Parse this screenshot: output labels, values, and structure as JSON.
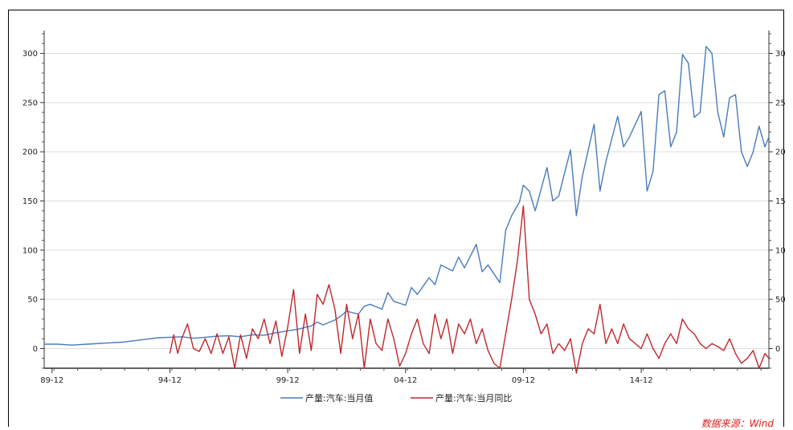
{
  "colors": {
    "series1": "#4a7bbd",
    "series2": "#c0272d",
    "grid": "#dddddd",
    "source": "#e02020"
  },
  "source_text": "数据来源：Wind",
  "chart_data": {
    "type": "line",
    "x_ticks": [
      "89-12",
      "94-12",
      "99-12",
      "04-12",
      "09-12",
      "14-12"
    ],
    "xlim": [
      "1989-08",
      "2020-05"
    ],
    "ylim": [
      -20,
      320
    ],
    "y_ticks": [
      0,
      50,
      100,
      150,
      200,
      250,
      300
    ],
    "grid": true,
    "legend": "bottom-center",
    "series": [
      {
        "name": "产量:汽车:当月值",
        "axis": "both",
        "points": [
          [
            "1989-08",
            4.5
          ],
          [
            "1990-03",
            4.5
          ],
          [
            "1990-10",
            3.5
          ],
          [
            "1991-06",
            4.5
          ],
          [
            "1992-03",
            5.5
          ],
          [
            "1992-12",
            6.5
          ],
          [
            "1993-06",
            8
          ],
          [
            "1993-12",
            9.5
          ],
          [
            "1994-06",
            11
          ],
          [
            "1994-12",
            11.5
          ],
          [
            "1995-06",
            12
          ],
          [
            "1995-12",
            10.5
          ],
          [
            "1996-06",
            11.5
          ],
          [
            "1996-12",
            12.5
          ],
          [
            "1997-06",
            13
          ],
          [
            "1997-12",
            12
          ],
          [
            "1998-06",
            14
          ],
          [
            "1998-12",
            13.5
          ],
          [
            "1999-06",
            16
          ],
          [
            "1999-12",
            18
          ],
          [
            "2000-06",
            20
          ],
          [
            "2000-12",
            23
          ],
          [
            "2001-03",
            27
          ],
          [
            "2001-06",
            24
          ],
          [
            "2001-12",
            29
          ],
          [
            "2002-03",
            33
          ],
          [
            "2002-06",
            38
          ],
          [
            "2002-12",
            35
          ],
          [
            "2003-03",
            43
          ],
          [
            "2003-06",
            45
          ],
          [
            "2003-12",
            40
          ],
          [
            "2004-03",
            57
          ],
          [
            "2004-06",
            48
          ],
          [
            "2004-12",
            44
          ],
          [
            "2005-03",
            62
          ],
          [
            "2005-06",
            55
          ],
          [
            "2005-12",
            72
          ],
          [
            "2006-03",
            65
          ],
          [
            "2006-06",
            85
          ],
          [
            "2006-12",
            79
          ],
          [
            "2007-03",
            93
          ],
          [
            "2007-06",
            82
          ],
          [
            "2007-12",
            106
          ],
          [
            "2008-03",
            78
          ],
          [
            "2008-06",
            85
          ],
          [
            "2008-12",
            67
          ],
          [
            "2009-03",
            120
          ],
          [
            "2009-06",
            135
          ],
          [
            "2009-10",
            149
          ],
          [
            "2009-12",
            166
          ],
          [
            "2010-03",
            160
          ],
          [
            "2010-06",
            140
          ],
          [
            "2010-12",
            184
          ],
          [
            "2011-03",
            150
          ],
          [
            "2011-06",
            155
          ],
          [
            "2011-12",
            202
          ],
          [
            "2012-03",
            135
          ],
          [
            "2012-06",
            175
          ],
          [
            "2012-12",
            228
          ],
          [
            "2013-03",
            160
          ],
          [
            "2013-06",
            190
          ],
          [
            "2013-12",
            236
          ],
          [
            "2014-03",
            205
          ],
          [
            "2014-06",
            215
          ],
          [
            "2014-12",
            241
          ],
          [
            "2015-03",
            160
          ],
          [
            "2015-06",
            180
          ],
          [
            "2015-09",
            258
          ],
          [
            "2015-12",
            262
          ],
          [
            "2016-03",
            205
          ],
          [
            "2016-06",
            220
          ],
          [
            "2016-09",
            299
          ],
          [
            "2016-12",
            290
          ],
          [
            "2017-03",
            235
          ],
          [
            "2017-06",
            240
          ],
          [
            "2017-09",
            307
          ],
          [
            "2017-12",
            300
          ],
          [
            "2018-03",
            240
          ],
          [
            "2018-06",
            215
          ],
          [
            "2018-09",
            255
          ],
          [
            "2018-12",
            258
          ],
          [
            "2019-03",
            200
          ],
          [
            "2019-06",
            185
          ],
          [
            "2019-09",
            200
          ],
          [
            "2019-12",
            226
          ],
          [
            "2020-03",
            205
          ],
          [
            "2020-05",
            215
          ]
        ]
      },
      {
        "name": "产量:汽车:当月同比",
        "axis": "both",
        "points": [
          [
            "1994-12",
            -5
          ],
          [
            "1995-02",
            14
          ],
          [
            "1995-04",
            -5
          ],
          [
            "1995-06",
            10
          ],
          [
            "1995-09",
            25
          ],
          [
            "1995-12",
            0
          ],
          [
            "1996-03",
            -3
          ],
          [
            "1996-06",
            10
          ],
          [
            "1996-09",
            -5
          ],
          [
            "1996-12",
            15
          ],
          [
            "1997-03",
            -5
          ],
          [
            "1997-06",
            12
          ],
          [
            "1997-09",
            -20
          ],
          [
            "1997-12",
            14
          ],
          [
            "1998-03",
            -10
          ],
          [
            "1998-06",
            20
          ],
          [
            "1998-09",
            10
          ],
          [
            "1998-12",
            30
          ],
          [
            "1999-03",
            5
          ],
          [
            "1999-06",
            28
          ],
          [
            "1999-09",
            -8
          ],
          [
            "1999-12",
            22
          ],
          [
            "2000-03",
            60
          ],
          [
            "2000-06",
            -5
          ],
          [
            "2000-09",
            35
          ],
          [
            "2000-12",
            -2
          ],
          [
            "2001-03",
            55
          ],
          [
            "2001-06",
            45
          ],
          [
            "2001-09",
            65
          ],
          [
            "2001-12",
            40
          ],
          [
            "2002-03",
            -5
          ],
          [
            "2002-06",
            45
          ],
          [
            "2002-09",
            10
          ],
          [
            "2002-12",
            35
          ],
          [
            "2003-03",
            -20
          ],
          [
            "2003-06",
            30
          ],
          [
            "2003-09",
            5
          ],
          [
            "2003-12",
            -2
          ],
          [
            "2004-03",
            30
          ],
          [
            "2004-06",
            10
          ],
          [
            "2004-09",
            -18
          ],
          [
            "2004-12",
            -5
          ],
          [
            "2005-03",
            15
          ],
          [
            "2005-06",
            30
          ],
          [
            "2005-09",
            5
          ],
          [
            "2005-12",
            -5
          ],
          [
            "2006-03",
            35
          ],
          [
            "2006-06",
            10
          ],
          [
            "2006-09",
            30
          ],
          [
            "2006-12",
            -5
          ],
          [
            "2007-03",
            25
          ],
          [
            "2007-06",
            15
          ],
          [
            "2007-09",
            30
          ],
          [
            "2007-12",
            5
          ],
          [
            "2008-03",
            20
          ],
          [
            "2008-06",
            -2
          ],
          [
            "2008-09",
            -15
          ],
          [
            "2008-12",
            -20
          ],
          [
            "2009-03",
            15
          ],
          [
            "2009-06",
            50
          ],
          [
            "2009-09",
            90
          ],
          [
            "2009-12",
            145
          ],
          [
            "2010-03",
            50
          ],
          [
            "2010-06",
            35
          ],
          [
            "2010-09",
            15
          ],
          [
            "2010-12",
            25
          ],
          [
            "2011-03",
            -5
          ],
          [
            "2011-06",
            5
          ],
          [
            "2011-09",
            -2
          ],
          [
            "2011-12",
            10
          ],
          [
            "2012-03",
            -25
          ],
          [
            "2012-06",
            5
          ],
          [
            "2012-09",
            20
          ],
          [
            "2012-12",
            15
          ],
          [
            "2013-03",
            45
          ],
          [
            "2013-06",
            5
          ],
          [
            "2013-09",
            20
          ],
          [
            "2013-12",
            5
          ],
          [
            "2014-03",
            25
          ],
          [
            "2014-06",
            10
          ],
          [
            "2014-09",
            5
          ],
          [
            "2014-12",
            0
          ],
          [
            "2015-03",
            15
          ],
          [
            "2015-06",
            0
          ],
          [
            "2015-09",
            -10
          ],
          [
            "2015-12",
            5
          ],
          [
            "2016-03",
            15
          ],
          [
            "2016-06",
            5
          ],
          [
            "2016-09",
            30
          ],
          [
            "2016-12",
            20
          ],
          [
            "2017-03",
            15
          ],
          [
            "2017-06",
            5
          ],
          [
            "2017-09",
            0
          ],
          [
            "2017-12",
            5
          ],
          [
            "2018-03",
            2
          ],
          [
            "2018-06",
            -2
          ],
          [
            "2018-09",
            10
          ],
          [
            "2018-12",
            -5
          ],
          [
            "2019-03",
            -15
          ],
          [
            "2019-06",
            -10
          ],
          [
            "2019-09",
            -2
          ],
          [
            "2019-12",
            -20
          ],
          [
            "2020-03",
            -5
          ],
          [
            "2020-05",
            -10
          ]
        ]
      }
    ]
  }
}
